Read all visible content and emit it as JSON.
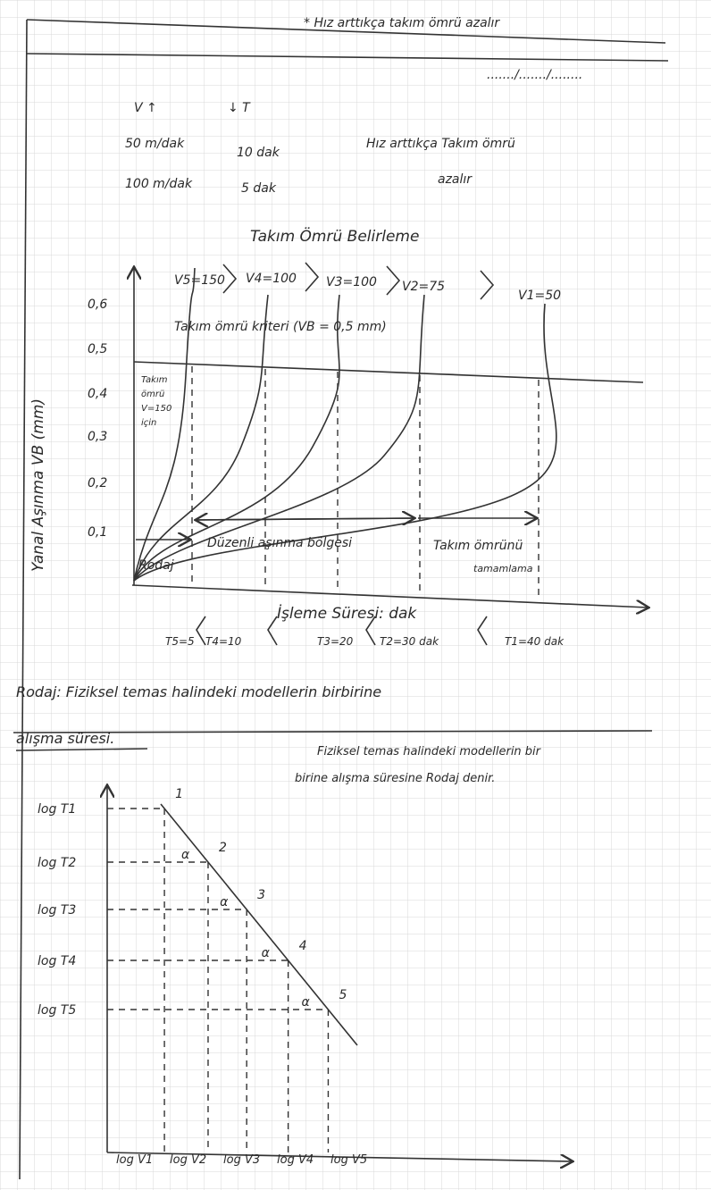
{
  "header": {
    "note": "* Hız arttıkça takım ömrü azalır",
    "date": "......./......./........"
  },
  "example": {
    "headers": [
      "V ↑",
      "↓ T"
    ],
    "rows": [
      [
        "50 m/dak",
        "10 dak"
      ],
      [
        "100 m/dak",
        "5 dak"
      ]
    ],
    "remark": [
      "Hız arttıkça Takım ömrü",
      "azalır"
    ]
  },
  "graph1": {
    "title": "Takım Ömrü Belirleme",
    "y_label": "Yanal Aşınma VB (mm)",
    "y_ticks": [
      "0,1",
      "0,2",
      "0,3",
      "0,4",
      "0,5",
      "0,6"
    ],
    "speeds": [
      "V5=150",
      "V4=100",
      "V3=100",
      "V2=75",
      "V1=50"
    ],
    "criterion": "Takım ömrü kriteri (VB = 0,5 mm)",
    "life_note": [
      "Takım",
      "ömrü",
      "V=150",
      "için"
    ],
    "regions": [
      "Rodaj",
      "Düzenli aşınma bölgesi",
      "Takım ömrünü",
      "tamamlama"
    ],
    "x_label": "İşleme Süresi: dak",
    "times": [
      "T5=5",
      "T4=10",
      "T3=20",
      "T2=30 dak",
      "T1=40 dak"
    ]
  },
  "definition": {
    "heading": "Rodaj: Fiziksel temas halindeki modellerin birbirine",
    "heading_cont": "alışma süresi.",
    "note": [
      "Fiziksel temas halindeki modellerin bir",
      "birine alışma süresine Rodaj denir."
    ]
  },
  "graph2": {
    "y_labels": [
      "log T1",
      "log T2",
      "log T3",
      "log T4",
      "log T5"
    ],
    "x_labels": [
      "log V1",
      "log V2",
      "log V3",
      "log V4",
      "log V5"
    ],
    "points": [
      "1",
      "2",
      "3",
      "4",
      "5"
    ],
    "angle": "α"
  }
}
